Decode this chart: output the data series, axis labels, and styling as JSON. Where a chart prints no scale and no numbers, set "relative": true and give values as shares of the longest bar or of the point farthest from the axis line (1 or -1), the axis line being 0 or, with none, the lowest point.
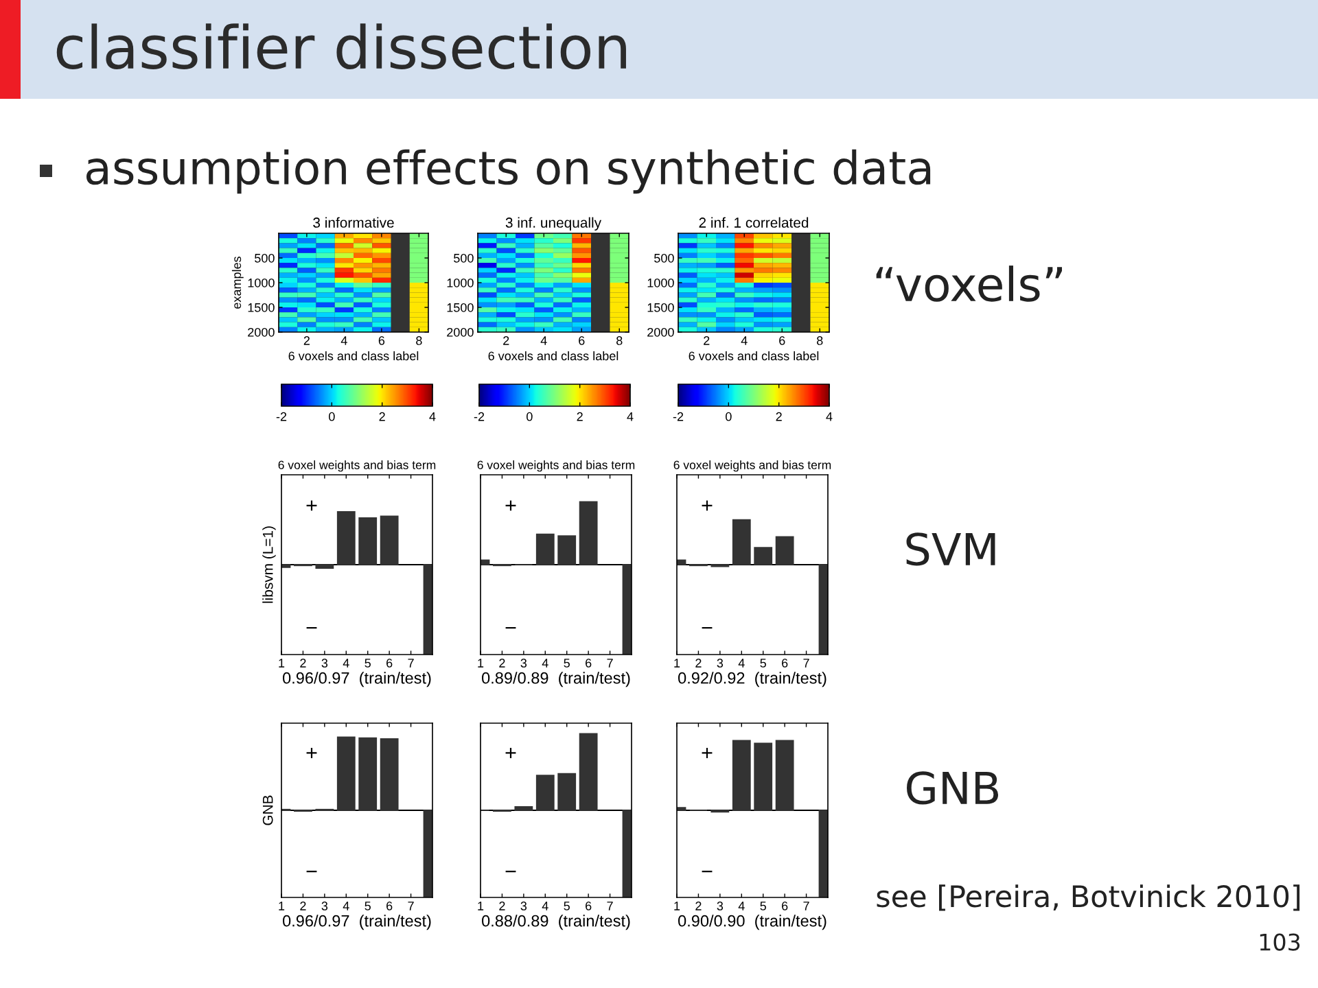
{
  "chart_data": [
    {
      "type": "other",
      "title": "classifier dissection",
      "subtitle": "assumption effects on synthetic data",
      "annotations": [
        "“voxels”",
        "SVM",
        "GNB",
        "see [Pereira, Botvinick 2010]",
        "103"
      ]
    },
    {
      "type": "heatmap",
      "title": "3 informative",
      "xlabel": "6 voxels and class label",
      "ylabel": "examples",
      "xlim": [
        0.5,
        8.5
      ],
      "xticks": [
        2,
        4,
        6,
        8
      ],
      "ylim": [
        2000,
        0
      ],
      "yticks": [
        500,
        1000,
        1500,
        2000
      ],
      "clim": [
        -2,
        4
      ],
      "cticks": [
        -2,
        0,
        2,
        4
      ],
      "cells": [
        [
          -0.8,
          0.2,
          0.0,
          2.4,
          2.0,
          2.6,
          null,
          1
        ],
        [
          0.3,
          -0.5,
          0.4,
          1.8,
          2.6,
          2.2,
          null,
          1
        ],
        [
          -0.3,
          0.1,
          -0.6,
          2.8,
          1.6,
          2.9,
          null,
          1
        ],
        [
          0.5,
          -1.0,
          0.2,
          2.2,
          2.3,
          1.9,
          null,
          1
        ],
        [
          -0.6,
          0.4,
          0.6,
          1.5,
          2.8,
          2.5,
          null,
          1
        ],
        [
          0.1,
          -0.2,
          -0.4,
          2.6,
          1.9,
          3.0,
          null,
          1
        ],
        [
          -1.0,
          0.3,
          0.1,
          2.0,
          2.5,
          2.3,
          null,
          1
        ],
        [
          0.4,
          -0.7,
          0.5,
          3.1,
          2.1,
          2.7,
          null,
          1
        ],
        [
          -0.2,
          0.0,
          -0.3,
          3.3,
          2.9,
          2.4,
          null,
          1
        ],
        [
          0.2,
          -0.4,
          0.3,
          1.7,
          2.2,
          3.2,
          null,
          1
        ],
        [
          0.0,
          0.3,
          -0.5,
          0.2,
          0.8,
          0.5,
          null,
          2
        ],
        [
          -0.7,
          -0.2,
          0.4,
          -0.6,
          0.1,
          -0.3,
          null,
          2
        ],
        [
          0.5,
          0.6,
          -0.1,
          0.4,
          -0.4,
          0.7,
          null,
          2
        ],
        [
          -0.4,
          -0.6,
          0.2,
          -0.2,
          0.5,
          0.0,
          null,
          2
        ],
        [
          0.2,
          0.1,
          -0.8,
          0.6,
          -0.7,
          0.3,
          null,
          2
        ],
        [
          -0.9,
          0.4,
          0.5,
          -0.9,
          0.3,
          -0.5,
          null,
          2
        ],
        [
          0.6,
          -0.3,
          0.0,
          0.1,
          -0.2,
          0.6,
          null,
          2
        ],
        [
          -0.1,
          0.7,
          -0.4,
          -0.4,
          0.6,
          -0.1,
          null,
          2
        ],
        [
          0.3,
          -0.5,
          0.3,
          0.5,
          -0.5,
          0.2,
          null,
          2
        ],
        [
          -0.5,
          0.2,
          -0.2,
          -0.3,
          0.2,
          -0.6,
          null,
          2
        ]
      ]
    },
    {
      "type": "heatmap",
      "title": "3 inf. unequally",
      "xlabel": "6 voxels and class label",
      "xlim": [
        0.5,
        8.5
      ],
      "xticks": [
        2,
        4,
        6,
        8
      ],
      "ylim": [
        2000,
        0
      ],
      "yticks": [
        500,
        1000,
        1500,
        2000
      ],
      "clim": [
        -2,
        4
      ],
      "cticks": [
        -2,
        0,
        2,
        4
      ],
      "cells": [
        [
          -0.5,
          0.3,
          -0.9,
          0.9,
          0.6,
          2.7,
          null,
          1
        ],
        [
          0.2,
          -0.4,
          0.1,
          0.4,
          1.0,
          3.1,
          null,
          1
        ],
        [
          -1.1,
          0.5,
          -0.2,
          0.7,
          0.3,
          2.3,
          null,
          1
        ],
        [
          0.4,
          -0.8,
          0.4,
          1.1,
          0.8,
          2.9,
          null,
          1
        ],
        [
          -0.2,
          0.1,
          -0.6,
          0.3,
          1.2,
          2.5,
          null,
          1
        ],
        [
          0.6,
          -0.3,
          0.3,
          0.8,
          0.5,
          3.3,
          null,
          1
        ],
        [
          -1.4,
          0.4,
          -0.4,
          0.5,
          0.9,
          2.1,
          null,
          1
        ],
        [
          0.0,
          -1.0,
          0.5,
          1.0,
          0.4,
          2.7,
          null,
          1
        ],
        [
          -0.6,
          0.2,
          -0.1,
          0.6,
          1.1,
          1.8,
          null,
          1
        ],
        [
          0.3,
          -0.5,
          0.2,
          0.9,
          0.7,
          2.4,
          null,
          1
        ],
        [
          -0.3,
          0.4,
          -0.5,
          0.2,
          -0.3,
          0.1,
          null,
          2
        ],
        [
          0.5,
          -0.6,
          0.3,
          -0.5,
          0.4,
          -0.4,
          null,
          2
        ],
        [
          -0.8,
          0.1,
          -0.2,
          0.6,
          -0.1,
          0.3,
          null,
          2
        ],
        [
          0.1,
          0.6,
          0.5,
          -0.2,
          0.5,
          -0.7,
          null,
          2
        ],
        [
          -0.4,
          -0.3,
          -0.7,
          0.3,
          -0.6,
          0.2,
          null,
          2
        ],
        [
          0.7,
          0.2,
          0.1,
          -0.7,
          0.2,
          -0.2,
          null,
          2
        ],
        [
          -0.2,
          -0.8,
          0.4,
          0.1,
          -0.4,
          0.5,
          null,
          2
        ],
        [
          0.3,
          0.3,
          -0.3,
          -0.4,
          0.6,
          -0.5,
          null,
          2
        ],
        [
          -0.6,
          -0.1,
          0.2,
          0.5,
          -0.2,
          0.0,
          null,
          2
        ],
        [
          0.4,
          0.5,
          -0.4,
          -0.1,
          0.1,
          -0.3,
          null,
          2
        ]
      ]
    },
    {
      "type": "heatmap",
      "title": "2 inf. 1 correlated",
      "xlabel": "6 voxels and class label",
      "xlim": [
        0.5,
        8.5
      ],
      "xticks": [
        2,
        4,
        6,
        8
      ],
      "ylim": [
        2000,
        0
      ],
      "yticks": [
        500,
        1000,
        1500,
        2000
      ],
      "clim": [
        -2,
        4
      ],
      "cticks": [
        -2,
        0,
        2,
        4
      ],
      "cells": [
        [
          -0.4,
          0.2,
          -0.2,
          3.0,
          2.2,
          2.0,
          null,
          1
        ],
        [
          0.3,
          0.5,
          0.1,
          2.6,
          1.8,
          1.7,
          null,
          1
        ],
        [
          -0.9,
          -0.1,
          -0.5,
          3.3,
          2.6,
          2.4,
          null,
          1
        ],
        [
          0.1,
          0.4,
          0.3,
          2.4,
          2.0,
          2.1,
          null,
          1
        ],
        [
          -0.5,
          0.0,
          -0.3,
          3.1,
          2.9,
          2.7,
          null,
          1
        ],
        [
          0.5,
          0.6,
          0.2,
          2.8,
          1.6,
          1.5,
          null,
          1
        ],
        [
          -0.2,
          -0.3,
          -0.7,
          3.4,
          2.4,
          2.3,
          null,
          1
        ],
        [
          0.2,
          0.3,
          0.4,
          2.5,
          2.7,
          2.6,
          null,
          1
        ],
        [
          -0.7,
          0.1,
          -0.1,
          3.6,
          2.1,
          2.0,
          null,
          1
        ],
        [
          0.0,
          -0.2,
          0.2,
          2.7,
          1.9,
          1.8,
          null,
          1
        ],
        [
          -0.6,
          0.4,
          -0.3,
          0.3,
          -0.9,
          -0.8,
          null,
          2
        ],
        [
          0.2,
          0.1,
          0.3,
          -0.2,
          -0.3,
          -0.4,
          null,
          2
        ],
        [
          -0.3,
          0.6,
          -0.6,
          0.5,
          0.2,
          0.1,
          null,
          2
        ],
        [
          0.4,
          -0.2,
          0.1,
          -0.4,
          -0.6,
          -0.5,
          null,
          2
        ],
        [
          -0.8,
          0.3,
          0.4,
          0.2,
          0.4,
          0.3,
          null,
          2
        ],
        [
          0.1,
          0.5,
          -0.2,
          -0.6,
          -0.2,
          -0.1,
          null,
          2
        ],
        [
          -0.4,
          -0.4,
          0.2,
          0.4,
          -0.7,
          -0.6,
          null,
          2
        ],
        [
          0.5,
          0.2,
          -0.4,
          -0.1,
          0.1,
          0.2,
          null,
          2
        ],
        [
          -0.2,
          0.7,
          0.0,
          0.3,
          -0.4,
          -0.3,
          null,
          2
        ],
        [
          0.3,
          -0.1,
          -0.5,
          -0.3,
          0.3,
          0.4,
          null,
          2
        ]
      ]
    },
    {
      "type": "bar",
      "title": "6 voxel weights and bias term",
      "xlabel": "0.96/0.97  (train/test)",
      "ylabel": "libsvm (L=1)",
      "x": [
        1,
        2,
        3,
        4,
        5,
        6,
        8
      ],
      "values": [
        -0.03,
        -0.01,
        -0.04,
        0.59,
        0.52,
        0.54,
        -1
      ],
      "color": "#333333",
      "relative": true,
      "xlim": [
        1,
        8
      ],
      "xticks": [
        1,
        2,
        3,
        4,
        5,
        6,
        7
      ],
      "annotations": [
        "+",
        "−"
      ]
    },
    {
      "type": "bar",
      "title": "6 voxel weights and bias term",
      "xlabel": "0.89/0.89  (train/test)",
      "x": [
        1,
        2,
        3,
        4,
        5,
        6,
        8
      ],
      "values": [
        0.05,
        -0.01,
        0,
        0.34,
        0.32,
        0.7,
        -1
      ],
      "color": "#333333",
      "relative": true,
      "xlim": [
        1,
        8
      ],
      "xticks": [
        1,
        2,
        3,
        4,
        5,
        6,
        7
      ],
      "annotations": [
        "+",
        "−"
      ]
    },
    {
      "type": "bar",
      "title": "6 voxel weights and bias term",
      "xlabel": "0.92/0.92  (train/test)",
      "x": [
        1,
        2,
        3,
        4,
        5,
        6,
        8
      ],
      "values": [
        0.05,
        -0.01,
        -0.02,
        0.5,
        0.19,
        0.31,
        -1
      ],
      "color": "#333333",
      "relative": true,
      "xlim": [
        1,
        8
      ],
      "xticks": [
        1,
        2,
        3,
        4,
        5,
        6,
        7
      ],
      "annotations": [
        "+",
        "−"
      ]
    },
    {
      "type": "bar",
      "xlabel": "0.96/0.97  (train/test)",
      "ylabel": "GNB",
      "x": [
        1,
        2,
        3,
        4,
        5,
        6,
        8
      ],
      "values": [
        0.01,
        -0.01,
        0.01,
        0.84,
        0.83,
        0.82,
        -1
      ],
      "color": "#333333",
      "relative": true,
      "xlim": [
        1,
        8
      ],
      "xticks": [
        1,
        2,
        3,
        4,
        5,
        6,
        7
      ],
      "annotations": [
        "+",
        "−"
      ]
    },
    {
      "type": "bar",
      "xlabel": "0.88/0.89  (train/test)",
      "x": [
        1,
        2,
        3,
        4,
        5,
        6,
        8
      ],
      "values": [
        0,
        -0.01,
        0.04,
        0.4,
        0.42,
        0.88,
        -1
      ],
      "color": "#333333",
      "relative": true,
      "xlim": [
        1,
        8
      ],
      "xticks": [
        1,
        2,
        3,
        4,
        5,
        6,
        7
      ],
      "annotations": [
        "+",
        "−"
      ]
    },
    {
      "type": "bar",
      "xlabel": "0.90/0.90  (train/test)",
      "x": [
        1,
        2,
        3,
        4,
        5,
        6,
        8
      ],
      "values": [
        0.03,
        0,
        -0.02,
        0.8,
        0.77,
        0.8,
        -1
      ],
      "color": "#333333",
      "relative": true,
      "xlim": [
        1,
        8
      ],
      "xticks": [
        1,
        2,
        3,
        4,
        5,
        6,
        7
      ],
      "annotations": [
        "+",
        "−"
      ]
    }
  ]
}
